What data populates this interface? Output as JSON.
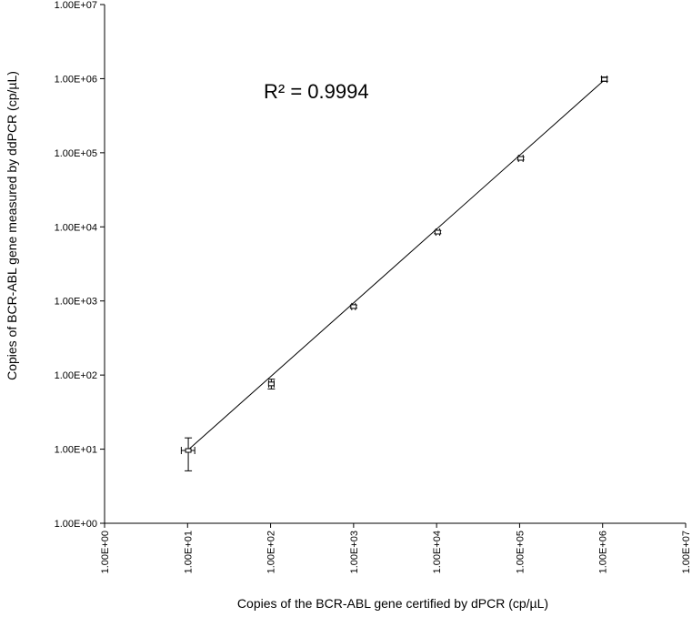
{
  "chart_data": {
    "type": "scatter",
    "x_scale": "log",
    "y_scale": "log",
    "xlim": [
      1,
      10000000
    ],
    "ylim": [
      1,
      10000000
    ],
    "xlabel": "Copies of the BCR-ABL gene certified by dPCR (cp/µL)",
    "ylabel": "Copies of BCR-ABL gene measured by ddPCR (cp/µL)",
    "x_ticks": [
      "1.00E+00",
      "1.00E+01",
      "1.00E+02",
      "1.00E+03",
      "1.00E+04",
      "1.00E+05",
      "1.00E+06",
      "1.00E+07"
    ],
    "y_ticks": [
      "1.00E+00",
      "1.00E+01",
      "1.00E+02",
      "1.00E+03",
      "1.00E+04",
      "1.00E+05",
      "1.00E+06",
      "1.00E+07"
    ],
    "grid": false,
    "legend": "none",
    "annotation": "R² = 0.9994",
    "points": [
      {
        "x": 10.2,
        "y": 9.6,
        "y_err_low": 5.1,
        "y_err_high": 14.2,
        "x_err_low": 8.4,
        "x_err_high": 12.2
      },
      {
        "x": 102,
        "y": 76,
        "y_err_low": 65,
        "y_err_high": 88,
        "x_err_low": 95,
        "x_err_high": 110
      },
      {
        "x": 1000,
        "y": 840,
        "y_err_low": 800,
        "y_err_high": 880,
        "x_err_low": 950,
        "x_err_high": 1050
      },
      {
        "x": 10300,
        "y": 8500,
        "y_err_low": 8100,
        "y_err_high": 8900,
        "x_err_low": 9800,
        "x_err_high": 10900
      },
      {
        "x": 103000,
        "y": 84000,
        "y_err_low": 80000,
        "y_err_high": 88000,
        "x_err_low": 97000,
        "x_err_high": 110000
      },
      {
        "x": 1050000,
        "y": 980000,
        "y_err_low": 920000,
        "y_err_high": 1050000,
        "x_err_low": 970000,
        "x_err_high": 1130000
      }
    ],
    "trendline": {
      "x": [
        10.2,
        1050000
      ],
      "y": [
        9.8,
        960000
      ]
    }
  }
}
